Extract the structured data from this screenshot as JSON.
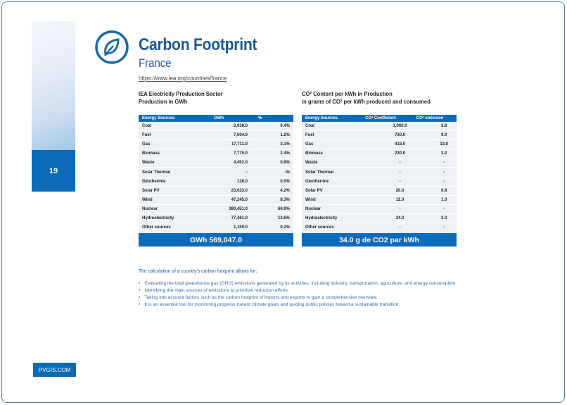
{
  "page": {
    "number": "19",
    "site": "PVGIS.COM"
  },
  "header": {
    "title": "Carbon Footprint",
    "subtitle": "France",
    "link": "https://www.iea.org/countries/france",
    "icon": "leaf-circle-icon",
    "accent": "#0b6bb8"
  },
  "production": {
    "heading1": "IEA Electricity Production Sector",
    "heading2": "Production in GWh",
    "columns": [
      "Energy Sources.",
      "GWh",
      "%"
    ],
    "rows": [
      [
        "Coal",
        "2,038.0",
        "0.4%"
      ],
      [
        "Fuel",
        "7,004.0",
        "1.2%"
      ],
      [
        "Gas",
        "17,711.0",
        "3.1%"
      ],
      [
        "Biomass",
        "7,775.0",
        "1.4%"
      ],
      [
        "Waste",
        "4,452.0",
        "0.8%"
      ],
      [
        "Solar Thermal",
        "-",
        "-%"
      ],
      [
        "Géothermie",
        "128.0",
        "0.0%"
      ],
      [
        "Solar PV",
        "23,623.0",
        "4.2%"
      ],
      [
        "Wind",
        "47,245.0",
        "8.3%"
      ],
      [
        "Nuclear",
        "380,451.0",
        "66.9%"
      ],
      [
        "Hydroelectricity",
        "77,461.0",
        "13.6%"
      ],
      [
        "Other sources",
        "1,159.0",
        "0.2%"
      ]
    ],
    "total": "GWh 569,047.0"
  },
  "co2": {
    "heading1": "CO² Content per kWh in Production",
    "heading2": "in grams of CO² per kWh produced and consumed",
    "columns": [
      "Energy Sources.",
      "CO² Coefficient",
      "CO² emission"
    ],
    "rows": [
      [
        "Coal",
        "1,060.0",
        "3.8"
      ],
      [
        "Fuel",
        "730.0",
        "9.0"
      ],
      [
        "Gas",
        "418.0",
        "13.0"
      ],
      [
        "Biomass",
        "230.0",
        "3.2"
      ],
      [
        "Waste",
        "-",
        "-"
      ],
      [
        "Solar Thermal",
        "-",
        "-"
      ],
      [
        "Géothermie",
        "-",
        "-"
      ],
      [
        "Solar PV",
        "20.0",
        "0.8"
      ],
      [
        "Wind",
        "12.0",
        "1.0"
      ],
      [
        "Nuclear",
        "-",
        "-"
      ],
      [
        "Hydroelectricity",
        "24.0",
        "3.3"
      ],
      [
        "Other sources",
        "-",
        "-"
      ]
    ],
    "total": "34.0 g de CO2 par kWh"
  },
  "notes": {
    "intro": "The calculation of a country's carbon footprint allows for:",
    "items": [
      "Evaluating the total greenhouse gas (GHG) emissions generated by its activities, including industry, transportation, agriculture, and energy consumption.",
      "Identifying the main sources of emissions to prioritize reduction efforts.",
      "Taking into account factors such as the carbon footprint of imports and exports to gain a comprehensive overview.",
      "It is an essential tool for monitoring progress toward climate goals and guiding public policies toward a sustainable transition."
    ]
  }
}
